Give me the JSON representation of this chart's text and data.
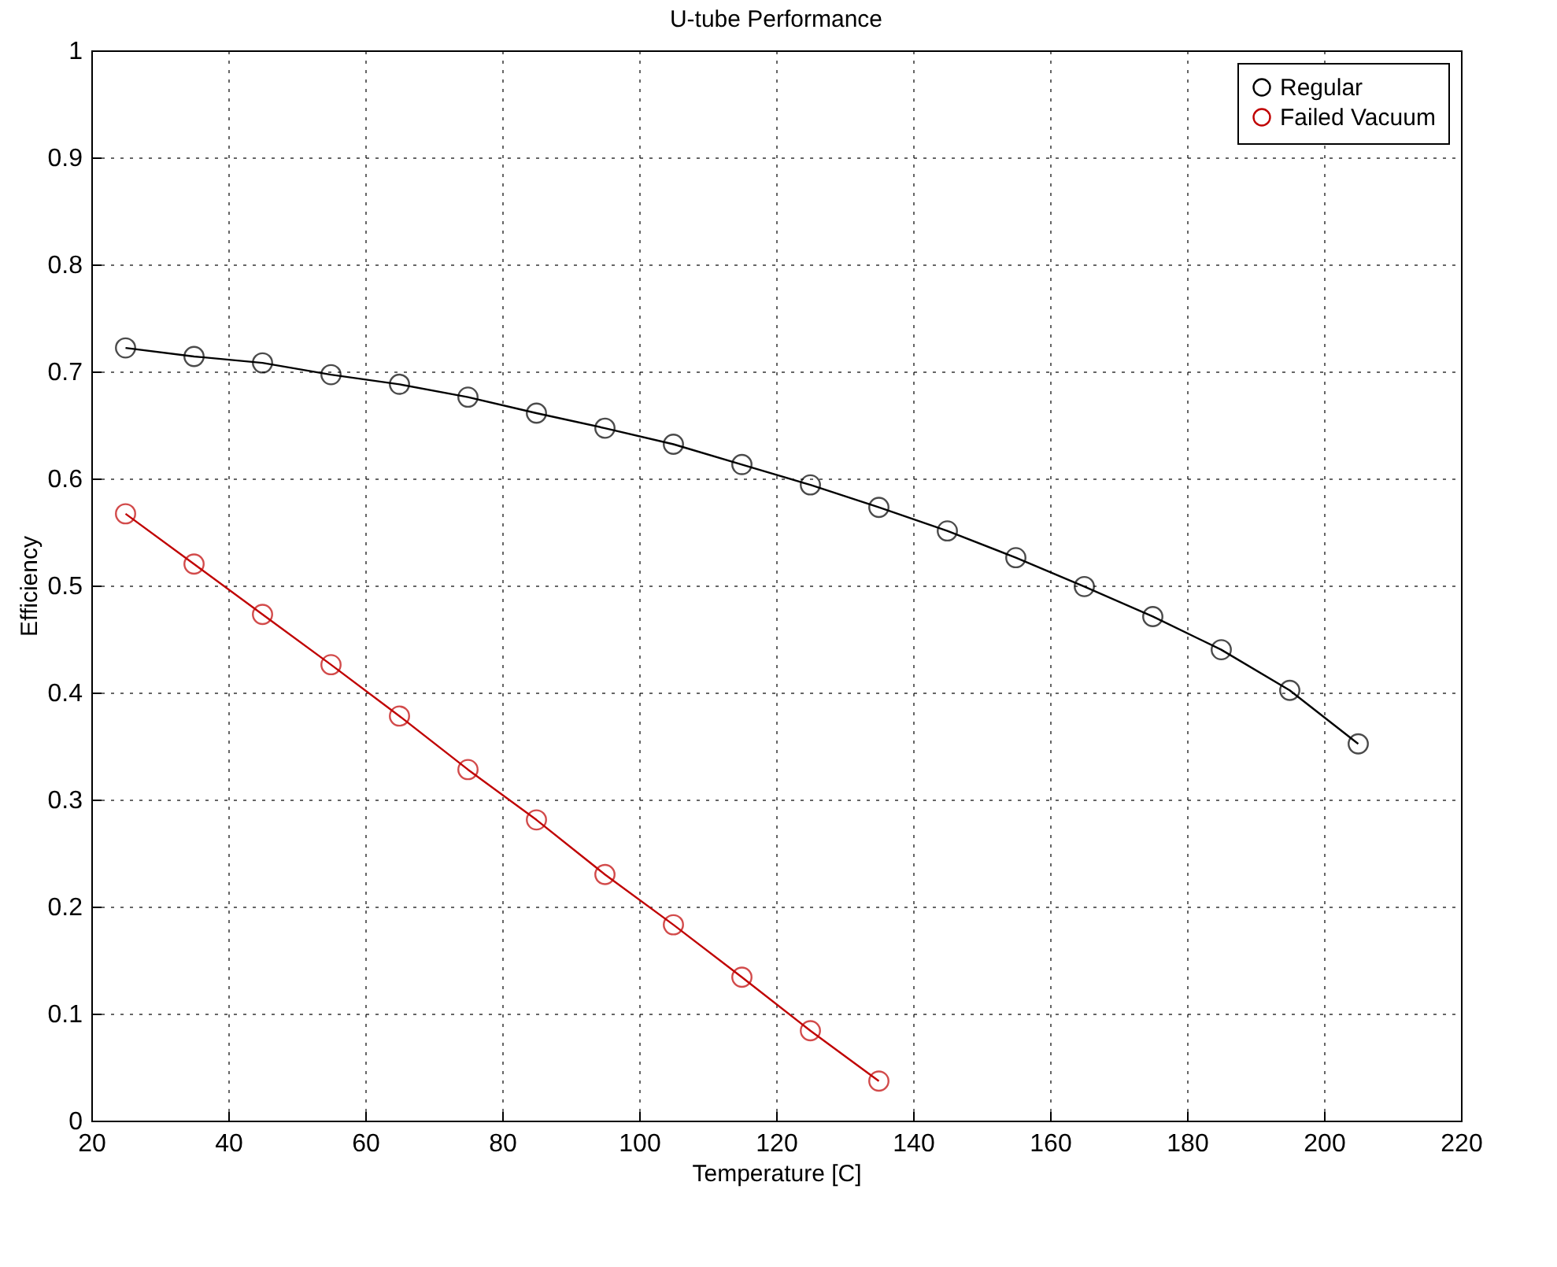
{
  "chart_data": {
    "type": "line",
    "title": "U-tube Performance",
    "xlabel": "Temperature [C]",
    "ylabel": "Efficiency",
    "x": [
      25,
      35,
      45,
      55,
      65,
      75,
      85,
      95,
      105,
      115,
      125,
      135,
      145,
      155,
      165,
      175,
      185,
      195,
      205
    ],
    "series": [
      {
        "name": "Regular",
        "color": "#000000",
        "values": [
          0.722,
          0.714,
          0.708,
          0.697,
          0.688,
          0.676,
          0.661,
          0.647,
          0.632,
          0.613,
          0.594,
          0.573,
          0.551,
          0.526,
          0.499,
          0.471,
          0.44,
          0.402,
          0.352
        ]
      },
      {
        "name": "Failed Vacuum",
        "color": "#c00000",
        "x": [
          25,
          35,
          45,
          55,
          65,
          75,
          85,
          95,
          105,
          115,
          125,
          135
        ],
        "values": [
          0.567,
          0.52,
          0.473,
          0.426,
          0.378,
          0.328,
          0.281,
          0.23,
          0.183,
          0.134,
          0.084,
          0.037
        ]
      }
    ],
    "xlim": [
      20,
      220
    ],
    "xticks": [
      20,
      40,
      60,
      80,
      100,
      120,
      140,
      160,
      180,
      200,
      220
    ],
    "ylim": [
      0,
      1
    ],
    "yticks": [
      0,
      0.1,
      0.2,
      0.3,
      0.4,
      0.5,
      0.6,
      0.7,
      0.8,
      0.9,
      1
    ],
    "grid": true,
    "legend": "top right",
    "marker": "circle",
    "line_style": "solid"
  }
}
